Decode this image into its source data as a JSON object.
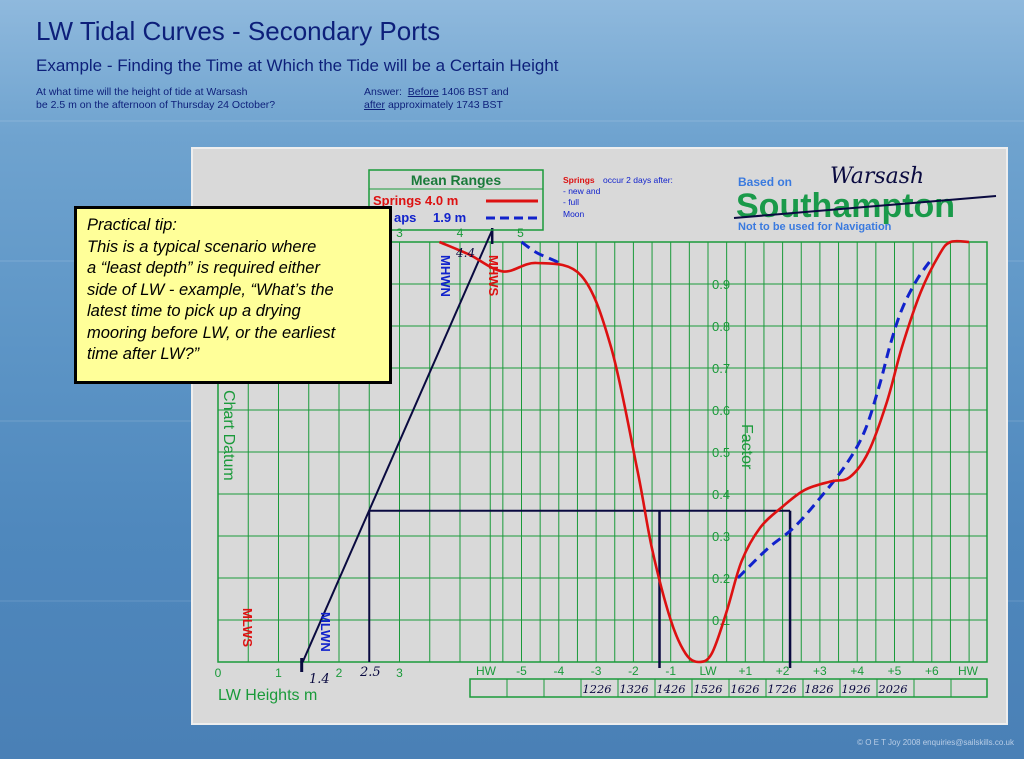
{
  "header": {
    "title": "LW Tidal Curves - Secondary Ports",
    "subtitle": "Example - Finding the Time at Which the Tide will be a Certain Height",
    "question_line1": "At what time will the height of tide at Warsash",
    "question_line2": "be 2.5 m on the afternoon of Thursday 24 October?",
    "answer_prefix": "Answer:",
    "answer_before": "Before",
    "answer_before_rest": "1406 BST and",
    "answer_after": "after",
    "answer_after_rest": "approximately 1743 BST"
  },
  "tip": {
    "line1": "Practical tip:",
    "line2": "This is a typical scenario where",
    "line3": "a “least depth” is required either",
    "line4": "side of LW - example, “What’s the",
    "line5": "latest time to pick up a drying",
    "line6": "mooring before LW, or the earliest",
    "line7": "time after LW?”"
  },
  "copyright": "© O E T Joy 2008 enquiries@sailskills.co.uk",
  "chart_data": {
    "type": "line",
    "legend": {
      "title": "Mean Ranges",
      "springs_label": "Springs 4.0 m",
      "neaps_label": "aps",
      "neaps_value": "1.9 m"
    },
    "springs_note": {
      "bold": "Springs",
      "rest": "occur 2 days after:",
      "item1": "-   new and",
      "item2": "-   full",
      "item3": "Moon"
    },
    "based_on": "Based on",
    "location": "Warsash",
    "port": "Southampton",
    "warning": "Not to be used for Navigation",
    "left_axis": {
      "label": "Chart Datum",
      "xlabel": "LW Heights m",
      "ticks": [
        0,
        1,
        2,
        3,
        4,
        5
      ],
      "visible_ticks": [
        "0",
        "1",
        "2",
        "3"
      ],
      "top_ticks": [
        "3",
        "4",
        "5"
      ],
      "mlws": "MLWS",
      "mlwn": "MLWN",
      "mhwn": "MHWN",
      "mhws": "MHWS"
    },
    "factor_axis": {
      "label": "Factor",
      "ticks": [
        "0.1",
        "0.2",
        "0.3",
        "0.4",
        "0.5",
        "0.6",
        "0.7",
        "0.8",
        "0.9"
      ]
    },
    "time_axis": {
      "labels": [
        "HW",
        "-5",
        "-4",
        "-3",
        "-2",
        "-1",
        "LW",
        "+1",
        "+2",
        "+3",
        "+4",
        "+5",
        "+6",
        "HW"
      ],
      "times": [
        "1226",
        "1326",
        "1426",
        "1526",
        "1626",
        "1726",
        "1826",
        "1926",
        "2026"
      ]
    },
    "annotations": {
      "lw_height": "1.4",
      "hw_height": "4.4",
      "target_height": "2.5",
      "factor": 0.36,
      "before_time_hours": -1.3,
      "after_time_hours": 2.2
    },
    "colors": {
      "springs": "#dd1111",
      "neaps": "#1122cc",
      "grid": "#1a9a3a",
      "construction": "#0a0a40"
    },
    "series": [
      {
        "name": "Springs",
        "points": [
          [
            -7.2,
            1.0
          ],
          [
            -6.4,
            0.97
          ],
          [
            -5.5,
            0.93
          ],
          [
            -4.6,
            0.95
          ],
          [
            -3.4,
            0.92
          ],
          [
            -2.6,
            0.75
          ],
          [
            -1.9,
            0.46
          ],
          [
            -1.5,
            0.27
          ],
          [
            -1.0,
            0.1
          ],
          [
            -0.6,
            0.02
          ],
          [
            -0.25,
            0.0
          ],
          [
            0.1,
            0.02
          ],
          [
            0.5,
            0.12
          ],
          [
            0.9,
            0.24
          ],
          [
            1.4,
            0.32
          ],
          [
            2.0,
            0.37
          ],
          [
            2.6,
            0.41
          ],
          [
            3.3,
            0.43
          ],
          [
            3.8,
            0.44
          ],
          [
            4.3,
            0.5
          ],
          [
            4.8,
            0.62
          ],
          [
            5.2,
            0.75
          ],
          [
            5.7,
            0.88
          ],
          [
            6.2,
            0.97
          ],
          [
            6.5,
            1.0
          ],
          [
            7.0,
            1.0
          ]
        ]
      },
      {
        "name": "Neaps",
        "points": [
          [
            -5.0,
            1.0
          ],
          [
            -4.6,
            0.975
          ],
          [
            -4.1,
            0.955
          ],
          [
            -3.9,
            0.945
          ]
        ],
        "points_after": [
          [
            0.8,
            0.2
          ],
          [
            1.6,
            0.27
          ],
          [
            2.3,
            0.32
          ],
          [
            3.0,
            0.39
          ],
          [
            3.7,
            0.47
          ],
          [
            4.2,
            0.55
          ],
          [
            4.6,
            0.66
          ],
          [
            4.9,
            0.76
          ],
          [
            5.2,
            0.84
          ],
          [
            5.6,
            0.91
          ],
          [
            6.0,
            0.96
          ]
        ]
      }
    ]
  }
}
